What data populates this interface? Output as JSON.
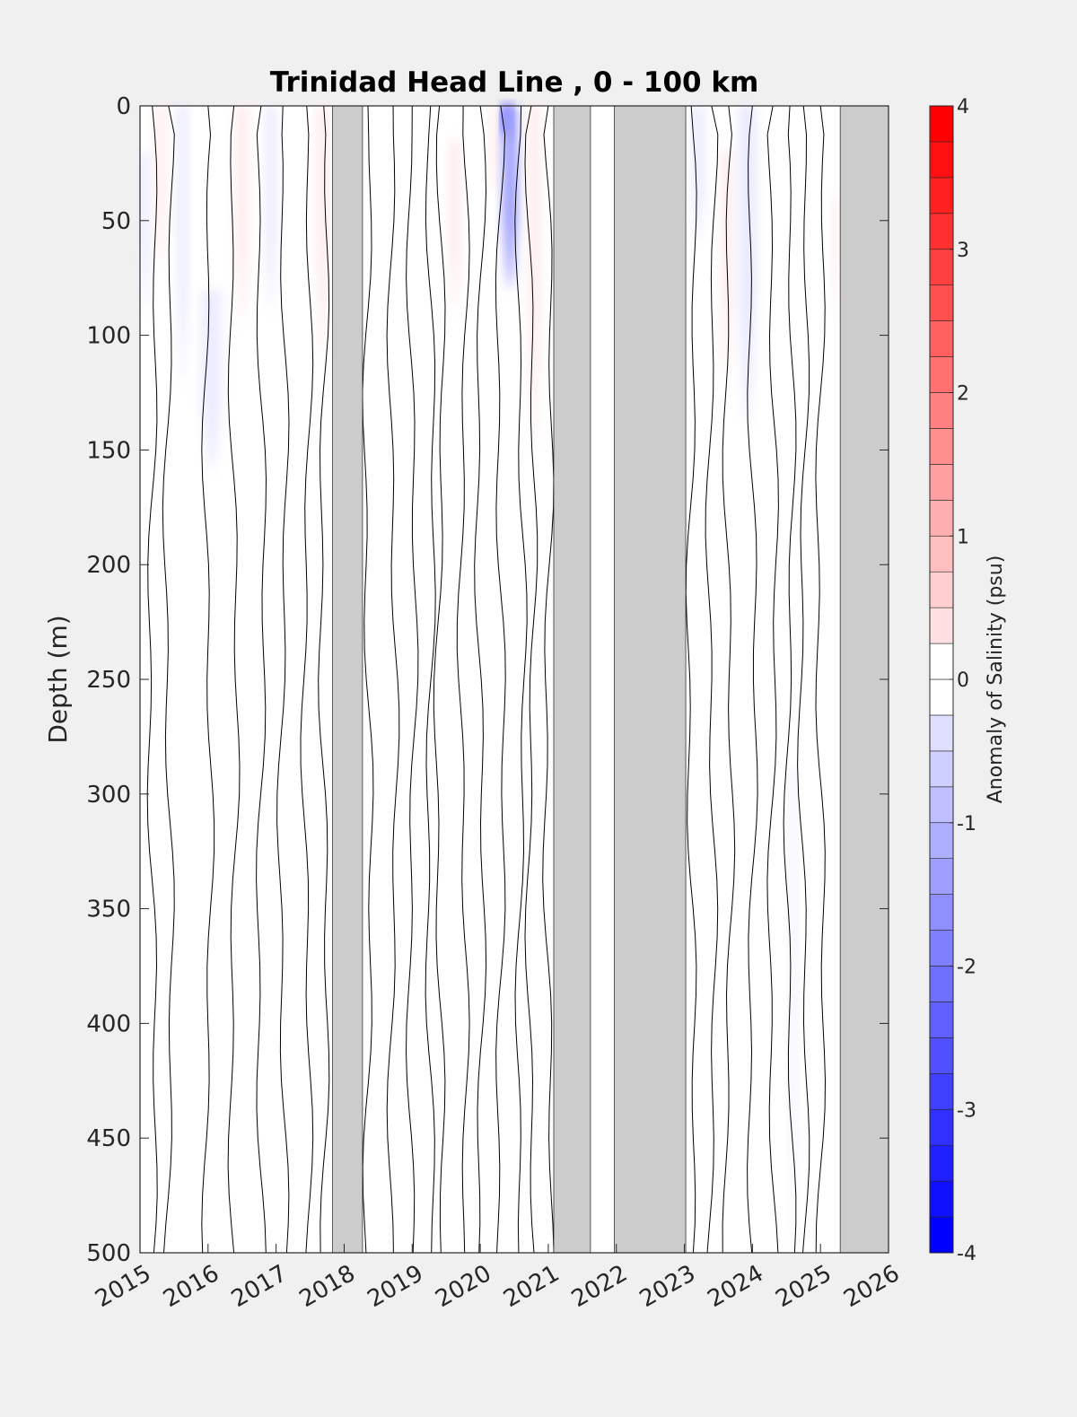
{
  "chart_data": {
    "type": "heatmap",
    "title": "Trinidad Head Line , 0 - 100 km",
    "ylabel": "Depth (m)",
    "xlabel": "",
    "xlim": [
      2015,
      2026
    ],
    "ylim": [
      0,
      500
    ],
    "y_reversed": true,
    "x_ticks": [
      "2015",
      "2016",
      "2017",
      "2018",
      "2019",
      "2020",
      "2021",
      "2022",
      "2023",
      "2024",
      "2025",
      "2026"
    ],
    "y_ticks": [
      "0",
      "50",
      "100",
      "150",
      "200",
      "250",
      "300",
      "350",
      "400",
      "450",
      "500"
    ],
    "colorbar": {
      "label": "Anomaly of Salinity (psu)",
      "range": [
        -4,
        4
      ],
      "step": 0.25,
      "ticks": [
        "4",
        "3",
        "2",
        "1",
        "0",
        "-1",
        "-2",
        "-3",
        "-4"
      ],
      "colors": {
        "negative": "#0000ff",
        "neutral": "#ffffff",
        "positive": "#ff0000"
      }
    },
    "missing_data_periods": [
      [
        2017.83,
        2018.27
      ],
      [
        2021.08,
        2021.62
      ],
      [
        2021.97,
        2023.02
      ],
      [
        2025.29,
        2026.0
      ]
    ],
    "missing_data_color": "#cccccc",
    "anomaly_patches": [
      {
        "x": [
          2015.0,
          2015.15
        ],
        "depth": [
          20,
          90
        ],
        "value": -0.3
      },
      {
        "x": [
          2015.2,
          2015.4
        ],
        "depth": [
          0,
          70
        ],
        "value": 0.25
      },
      {
        "x": [
          2015.55,
          2015.7
        ],
        "depth": [
          0,
          120
        ],
        "value": -0.35
      },
      {
        "x": [
          2015.9,
          2016.2
        ],
        "depth": [
          80,
          160
        ],
        "value": -0.3
      },
      {
        "x": [
          2016.4,
          2016.6
        ],
        "depth": [
          0,
          95
        ],
        "value": 0.3
      },
      {
        "x": [
          2016.85,
          2017.0
        ],
        "depth": [
          0,
          90
        ],
        "value": -0.35
      },
      {
        "x": [
          2017.6,
          2017.78
        ],
        "depth": [
          0,
          110
        ],
        "value": 0.3
      },
      {
        "x": [
          2019.55,
          2019.7
        ],
        "depth": [
          15,
          90
        ],
        "value": 0.35
      },
      {
        "x": [
          2020.15,
          2020.25
        ],
        "depth": [
          0,
          40
        ],
        "value": 0.35
      },
      {
        "x": [
          2020.33,
          2020.45
        ],
        "depth": [
          0,
          15
        ],
        "value": -3.3
      },
      {
        "x": [
          2020.33,
          2020.55
        ],
        "depth": [
          0,
          80
        ],
        "value": -1.5
      },
      {
        "x": [
          2020.7,
          2020.88
        ],
        "depth": [
          0,
          150
        ],
        "value": 0.3
      },
      {
        "x": [
          2023.1,
          2023.3
        ],
        "depth": [
          0,
          60
        ],
        "value": -0.3
      },
      {
        "x": [
          2023.55,
          2023.7
        ],
        "depth": [
          20,
          120
        ],
        "value": 0.35
      },
      {
        "x": [
          2023.8,
          2024.05
        ],
        "depth": [
          0,
          140
        ],
        "value": -0.35
      },
      {
        "x": [
          2024.55,
          2024.65
        ],
        "depth": [
          290,
          500
        ],
        "value": -0.25
      },
      {
        "x": [
          2025.18,
          2025.28
        ],
        "depth": [
          40,
          90
        ],
        "value": 0.3
      }
    ],
    "contour_x": [
      2015.18,
      2015.42,
      2016.0,
      2016.38,
      2016.78,
      2017.1,
      2017.45,
      2017.7,
      2018.35,
      2018.72,
      2019.0,
      2019.27,
      2019.4,
      2019.75,
      2020.0,
      2020.3,
      2020.6,
      2020.75,
      2021.0,
      2023.1,
      2023.4,
      2023.65,
      2024.0,
      2024.3,
      2024.55,
      2024.75,
      2025.0
    ]
  }
}
